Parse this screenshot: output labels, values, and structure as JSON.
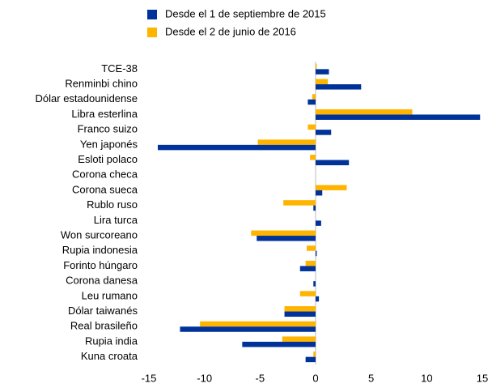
{
  "chart_data": {
    "type": "barh",
    "categories": [
      "TCE-38",
      "Renminbi chino",
      "Dólar estadounidense",
      "Libra esterlina",
      "Franco suizo",
      "Yen japonés",
      "Esloti polaco",
      "Corona checa",
      "Corona sueca",
      "Rublo ruso",
      "Lira turca",
      "Won surcoreano",
      "Rupia indonesia",
      "Forinto húngaro",
      "Corona danesa",
      "Leu rumano",
      "Dólar taiwanés",
      "Real brasileño",
      "Rupia india",
      "Kuna croata"
    ],
    "series": [
      {
        "name": "Desde el 1 de septiembre de 2015",
        "color": "#003299",
        "values": [
          1.2,
          4.1,
          -0.7,
          14.8,
          1.4,
          -14.2,
          3.0,
          0,
          0.6,
          -0.2,
          0.5,
          -5.3,
          0.1,
          -1.4,
          -0.2,
          0.3,
          -2.8,
          -12.2,
          -6.6,
          -0.9
        ]
      },
      {
        "name": "Desde el 2 de junio de 2016",
        "color": "#ffb400",
        "values": [
          0.1,
          1.1,
          -0.3,
          8.7,
          -0.7,
          -5.2,
          -0.5,
          0,
          2.8,
          -2.9,
          0,
          -5.8,
          -0.8,
          -0.9,
          0,
          -1.4,
          -2.8,
          -10.4,
          -3.0,
          -0.2
        ]
      }
    ],
    "xlim": [
      -15,
      15
    ],
    "xticks": [
      -15,
      -10,
      -5,
      0,
      5,
      10,
      15
    ]
  }
}
